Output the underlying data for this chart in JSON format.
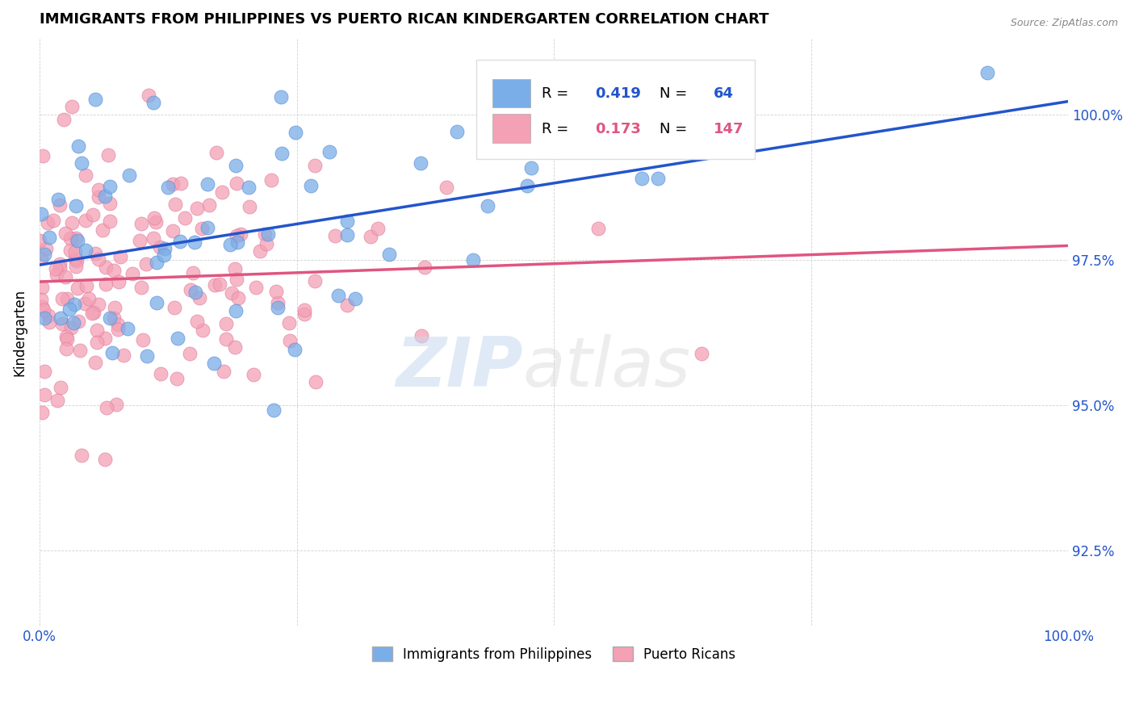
{
  "title": "IMMIGRANTS FROM PHILIPPINES VS PUERTO RICAN KINDERGARTEN CORRELATION CHART",
  "source": "Source: ZipAtlas.com",
  "ylabel": "Kindergarten",
  "xlim": [
    0,
    100
  ],
  "ylim": [
    91.2,
    101.3
  ],
  "ytick_values": [
    92.5,
    95.0,
    97.5,
    100.0
  ],
  "ytick_labels": [
    "92.5%",
    "95.0%",
    "97.5%",
    "100.0%"
  ],
  "legend_blue_r": "0.419",
  "legend_blue_n": "64",
  "legend_pink_r": "0.173",
  "legend_pink_n": "147",
  "blue_color": "#7aaee8",
  "pink_color": "#f4a0b5",
  "blue_line_color": "#2255cc",
  "pink_line_color": "#e05580",
  "blue_edge_color": "#5b8dd9",
  "pink_edge_color": "#e080a0",
  "seed": 12345
}
